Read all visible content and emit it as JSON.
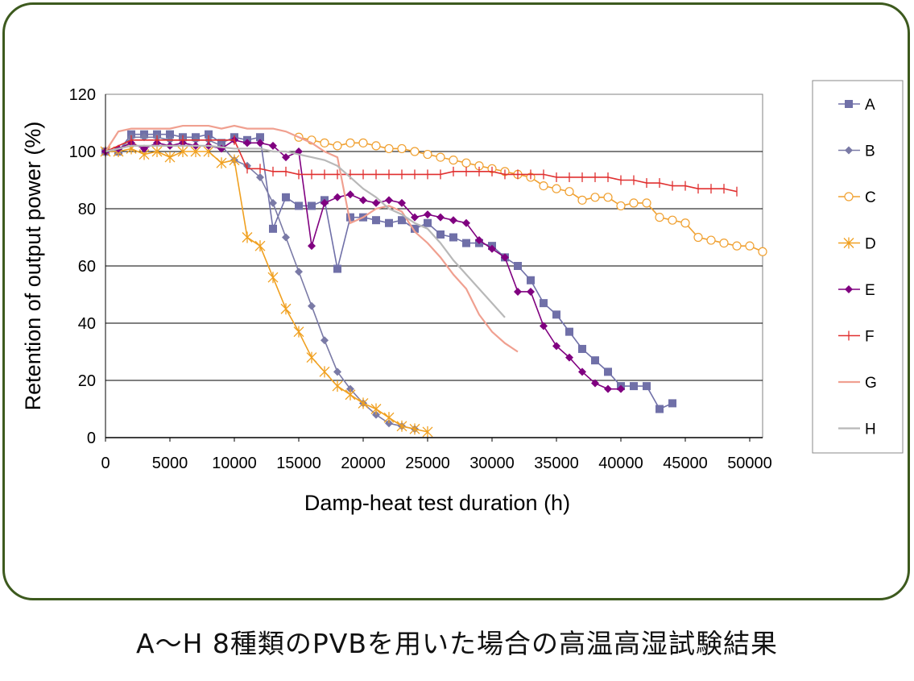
{
  "caption": "A～H 8種類のPVBを用いた場合の高温高湿試験結果",
  "chart_data": {
    "type": "line",
    "xlabel": "Damp-heat test duration (h)",
    "ylabel": "Retention of output power (%)",
    "xlim": [
      0,
      51000
    ],
    "ylim": [
      0,
      120
    ],
    "xticks": [
      0,
      5000,
      10000,
      15000,
      20000,
      25000,
      30000,
      35000,
      40000,
      45000,
      50000
    ],
    "yticks": [
      0,
      20,
      40,
      60,
      80,
      100,
      120
    ],
    "grid": "horizontal",
    "legend_position": "right",
    "series": [
      {
        "name": "A",
        "color": "#7070a8",
        "marker": "square",
        "x": [
          0,
          1000,
          2000,
          3000,
          4000,
          5000,
          6000,
          7000,
          8000,
          9000,
          10000,
          11000,
          12000,
          13000,
          14000,
          15000,
          16000,
          17000,
          18000,
          19000,
          20000,
          21000,
          22000,
          23000,
          24000,
          25000,
          26000,
          27000,
          28000,
          29000,
          30000,
          31000,
          32000,
          33000,
          34000,
          35000,
          36000,
          37000,
          38000,
          39000,
          40000,
          41000,
          42000,
          43000,
          44000
        ],
        "y": [
          100,
          100,
          106,
          106,
          106,
          106,
          105,
          105,
          106,
          103,
          105,
          104,
          105,
          73,
          84,
          81,
          81,
          83,
          59,
          77,
          77,
          76,
          75,
          76,
          73,
          75,
          71,
          70,
          68,
          68,
          67,
          63,
          60,
          55,
          47,
          43,
          37,
          31,
          27,
          23,
          18,
          18,
          18,
          10,
          12
        ]
      },
      {
        "name": "B",
        "color": "#7a7aa6",
        "marker": "diamond",
        "x": [
          0,
          1000,
          2000,
          3000,
          4000,
          5000,
          6000,
          7000,
          8000,
          9000,
          10000,
          11000,
          12000,
          13000,
          14000,
          15000,
          16000,
          17000,
          18000,
          19000,
          20000,
          21000,
          22000,
          23000,
          24000
        ],
        "y": [
          100,
          100,
          105,
          105,
          105,
          104,
          104,
          104,
          104,
          102,
          97,
          95,
          91,
          82,
          70,
          58,
          46,
          34,
          23,
          17,
          12,
          8,
          5,
          4,
          3
        ]
      },
      {
        "name": "C",
        "color": "#f0a030",
        "marker": "circle",
        "x": [
          15000,
          16000,
          17000,
          18000,
          19000,
          20000,
          21000,
          22000,
          23000,
          24000,
          25000,
          26000,
          27000,
          28000,
          29000,
          30000,
          31000,
          32000,
          33000,
          34000,
          35000,
          36000,
          37000,
          38000,
          39000,
          40000,
          41000,
          42000,
          43000,
          44000,
          45000,
          46000,
          47000,
          48000,
          49000,
          50000,
          51000
        ],
        "y": [
          105,
          104,
          103,
          102,
          103,
          103,
          102,
          101,
          101,
          100,
          99,
          98,
          97,
          96,
          95,
          94,
          93,
          92,
          91,
          88,
          87,
          86,
          83,
          84,
          84,
          81,
          82,
          82,
          77,
          76,
          75,
          70,
          69,
          68,
          67,
          67,
          65
        ]
      },
      {
        "name": "D",
        "color": "#f0a020",
        "marker": "asterisk",
        "x": [
          0,
          1000,
          2000,
          3000,
          4000,
          5000,
          6000,
          7000,
          8000,
          9000,
          10000,
          11000,
          12000,
          13000,
          14000,
          15000,
          16000,
          17000,
          18000,
          19000,
          20000,
          21000,
          22000,
          23000,
          24000,
          25000
        ],
        "y": [
          100,
          100,
          101,
          99,
          100,
          98,
          100,
          100,
          100,
          96,
          97,
          70,
          67,
          56,
          45,
          37,
          28,
          23,
          18,
          15,
          12,
          10,
          7,
          4,
          3,
          2
        ]
      },
      {
        "name": "E",
        "color": "#800080",
        "marker": "diamond",
        "x": [
          0,
          1000,
          2000,
          3000,
          4000,
          5000,
          6000,
          7000,
          8000,
          9000,
          10000,
          11000,
          12000,
          13000,
          14000,
          15000,
          16000,
          17000,
          18000,
          19000,
          20000,
          21000,
          22000,
          23000,
          24000,
          25000,
          26000,
          27000,
          28000,
          29000,
          30000,
          31000,
          32000,
          33000,
          34000,
          35000,
          36000,
          37000,
          38000,
          39000,
          40000
        ],
        "y": [
          100,
          101,
          103,
          101,
          103,
          102,
          103,
          102,
          102,
          101,
          104,
          103,
          103,
          102,
          98,
          100,
          67,
          82,
          84,
          85,
          83,
          82,
          83,
          82,
          77,
          78,
          77,
          76,
          75,
          69,
          66,
          63,
          51,
          51,
          39,
          32,
          28,
          23,
          19,
          17,
          17
        ]
      },
      {
        "name": "F",
        "color": "#e03030",
        "marker": "plus",
        "x": [
          0,
          2000,
          4000,
          6000,
          8000,
          10000,
          11000,
          12000,
          13000,
          14000,
          15000,
          16000,
          17000,
          18000,
          19000,
          20000,
          21000,
          22000,
          23000,
          24000,
          25000,
          26000,
          27000,
          28000,
          29000,
          30000,
          31000,
          32000,
          33000,
          34000,
          35000,
          36000,
          37000,
          38000,
          39000,
          40000,
          41000,
          42000,
          43000,
          44000,
          45000,
          46000,
          47000,
          48000,
          49000
        ],
        "y": [
          100,
          104,
          104,
          104,
          104,
          104,
          94,
          94,
          93,
          93,
          92,
          92,
          92,
          92,
          92,
          92,
          92,
          92,
          92,
          92,
          92,
          92,
          93,
          93,
          93,
          93,
          92,
          92,
          92,
          92,
          91,
          91,
          91,
          91,
          91,
          90,
          90,
          89,
          89,
          88,
          88,
          87,
          87,
          87,
          86
        ]
      },
      {
        "name": "G",
        "color": "#f0a090",
        "marker": "none",
        "x": [
          0,
          1000,
          2000,
          3000,
          4000,
          5000,
          6000,
          7000,
          8000,
          9000,
          10000,
          11000,
          12000,
          13000,
          14000,
          15000,
          16000,
          17000,
          18000,
          19000,
          20000,
          21000,
          22000,
          23000,
          24000,
          25000,
          26000,
          27000,
          28000,
          29000,
          30000,
          31000,
          32000
        ],
        "y": [
          100,
          107,
          108,
          108,
          108,
          108,
          109,
          109,
          109,
          108,
          109,
          108,
          108,
          108,
          107,
          105,
          103,
          100,
          98,
          75,
          77,
          80,
          81,
          79,
          72,
          68,
          63,
          57,
          52,
          43,
          37,
          33,
          30
        ]
      },
      {
        "name": "H",
        "color": "#b8b8b8",
        "marker": "none",
        "x": [
          0,
          2000,
          4000,
          6000,
          8000,
          10000,
          11000,
          12000,
          13000,
          14000,
          15000,
          16000,
          17000,
          18000,
          19000,
          20000,
          21000,
          22000,
          23000,
          24000,
          25000,
          26000,
          27000,
          28000,
          29000,
          30000,
          31000
        ],
        "y": [
          100,
          102,
          102,
          102,
          102,
          101,
          101,
          101,
          100,
          100,
          99,
          98,
          97,
          95,
          91,
          87,
          84,
          80,
          78,
          75,
          73,
          68,
          62,
          57,
          52,
          47,
          42
        ]
      }
    ]
  }
}
